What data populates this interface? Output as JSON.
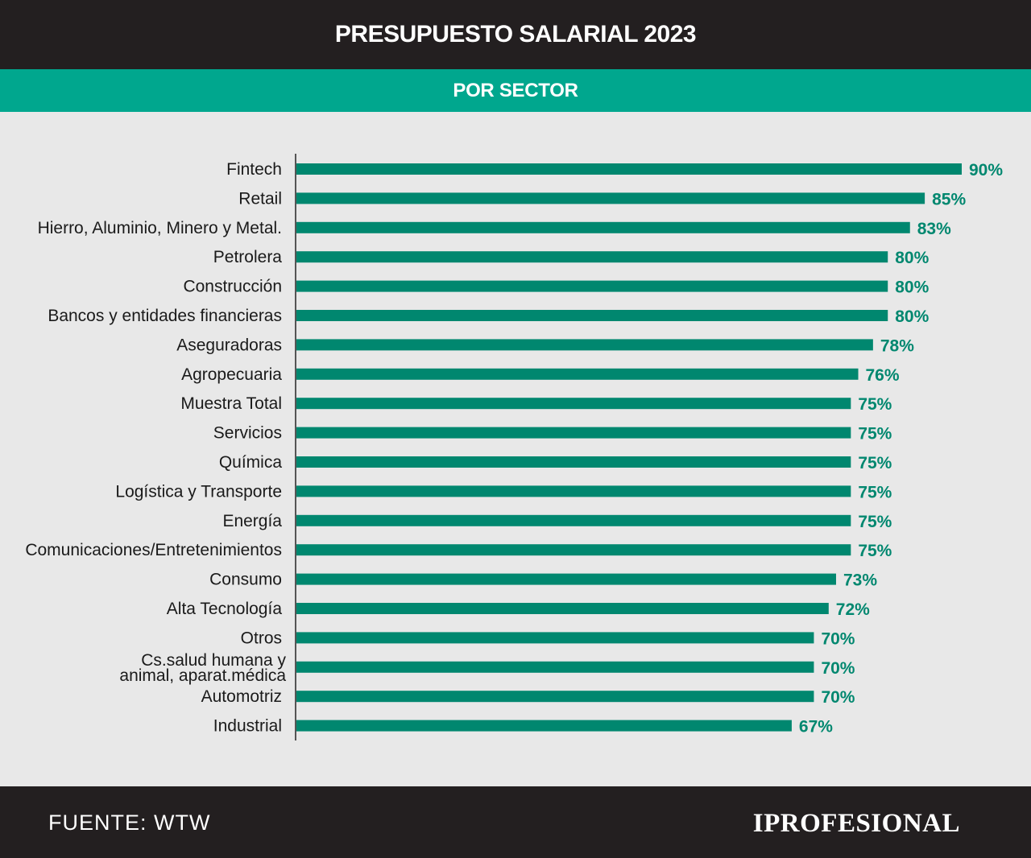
{
  "header": {
    "title": "PRESUPUESTO SALARIAL 2023",
    "subtitle": "POR SECTOR"
  },
  "footer": {
    "source": "FUENTE: WTW",
    "brand": "IPROFESIONAL"
  },
  "colors": {
    "header_bg": "#231f20",
    "accent": "#00a78e",
    "bar": "#00876f",
    "background": "#e8e8e8"
  },
  "chart_data": {
    "type": "bar",
    "orientation": "horizontal",
    "title": "PRESUPUESTO SALARIAL 2023",
    "subtitle": "POR SECTOR",
    "categories": [
      "Fintech",
      "Retail",
      "Hierro, Aluminio, Minero y Metal.",
      "Petrolera",
      "Construcción",
      "Bancos y entidades financieras",
      "Aseguradoras",
      "Agropecuaria",
      "Muestra Total",
      "Servicios",
      "Química",
      "Logística y Transporte",
      "Energía",
      "Comunicaciones/Entretenimientos",
      "Consumo",
      "Alta Tecnología",
      "Otros",
      "Cs.salud humana y animal, aparat.médica",
      "Automotriz",
      "Industrial"
    ],
    "values": [
      90,
      85,
      83,
      80,
      80,
      80,
      78,
      76,
      75,
      75,
      75,
      75,
      75,
      75,
      73,
      72,
      70,
      70,
      70,
      67
    ],
    "value_labels": [
      "90%",
      "85%",
      "83%",
      "80%",
      "80%",
      "80%",
      "78%",
      "76%",
      "75%",
      "75%",
      "75%",
      "75%",
      "75%",
      "75%",
      "73%",
      "72%",
      "70%",
      "70%",
      "70%",
      "67%"
    ],
    "unit": "%",
    "xlim": [
      0,
      90
    ],
    "grid": false,
    "legend": "none"
  }
}
